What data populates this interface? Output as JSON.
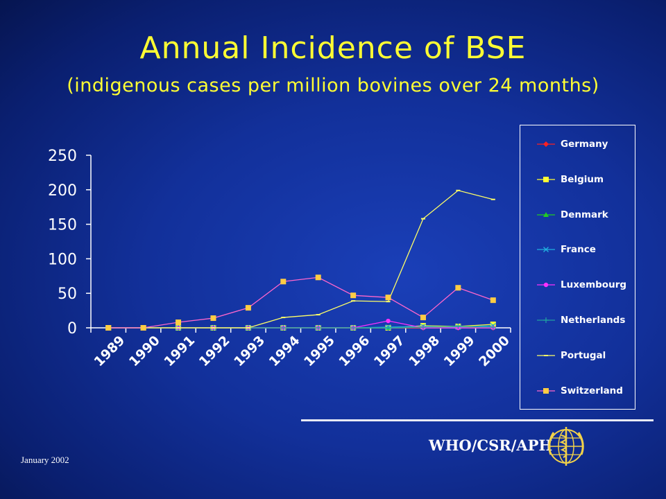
{
  "slide": {
    "title": "Annual Incidence of BSE",
    "subtitle": "(indigenous cases per million bovines over 24 months)",
    "organization": "WHO/CSR/APH",
    "date": "January 2002",
    "colors": {
      "title": "#ffff33",
      "background": "#1530a0",
      "text": "#ffffff"
    }
  },
  "chart_data": {
    "type": "line",
    "title": "Annual Incidence of BSE",
    "subtitle": "(indigenous cases per million bovines over 24 months)",
    "xlabel": "",
    "ylabel": "",
    "categories": [
      "1989",
      "1990",
      "1991",
      "1992",
      "1993",
      "1994",
      "1995",
      "1996",
      "1997",
      "1998",
      "1999",
      "2000"
    ],
    "ylim": [
      0,
      250
    ],
    "yticks": [
      0,
      50,
      100,
      150,
      200,
      250
    ],
    "grid": false,
    "legend_position": "right",
    "series": [
      {
        "name": "Germany",
        "color": "#ff2020",
        "marker": "diamond",
        "values": [
          0,
          0,
          0,
          0,
          0,
          0,
          0,
          0,
          0,
          0,
          0,
          0
        ]
      },
      {
        "name": "Belgium",
        "color": "#ffff33",
        "marker": "square",
        "values": [
          0,
          0,
          0,
          0,
          0,
          0,
          0,
          0,
          0,
          3,
          2,
          5
        ]
      },
      {
        "name": "Denmark",
        "color": "#22cc22",
        "marker": "triangle",
        "values": [
          0,
          0,
          0,
          0,
          0,
          0,
          0,
          0,
          0,
          1,
          1,
          1
        ]
      },
      {
        "name": "France",
        "color": "#20b0e0",
        "marker": "x",
        "values": [
          0,
          0,
          0,
          0,
          0,
          0,
          0,
          0,
          1,
          2,
          1,
          3
        ]
      },
      {
        "name": "Luxembourg",
        "color": "#ff30ff",
        "marker": "circle",
        "values": [
          0,
          0,
          0,
          0,
          0,
          0,
          0,
          0,
          10,
          0,
          0,
          0
        ]
      },
      {
        "name": "Netherlands",
        "color": "#20a0a0",
        "marker": "plus",
        "values": [
          0,
          0,
          0,
          0,
          0,
          0,
          0,
          0,
          0,
          1,
          2,
          1
        ]
      },
      {
        "name": "Portugal",
        "color": "#ffff66",
        "marker": "dash",
        "values": [
          0,
          0,
          0,
          0,
          0,
          15,
          19,
          39,
          38,
          158,
          199,
          186
        ]
      },
      {
        "name": "Switzerland",
        "color": "#ff66cc",
        "marker": "square",
        "marker_fill": "#ffcc44",
        "values": [
          0,
          0,
          8,
          14,
          29,
          67,
          73,
          47,
          44,
          15,
          58,
          40
        ]
      }
    ]
  }
}
